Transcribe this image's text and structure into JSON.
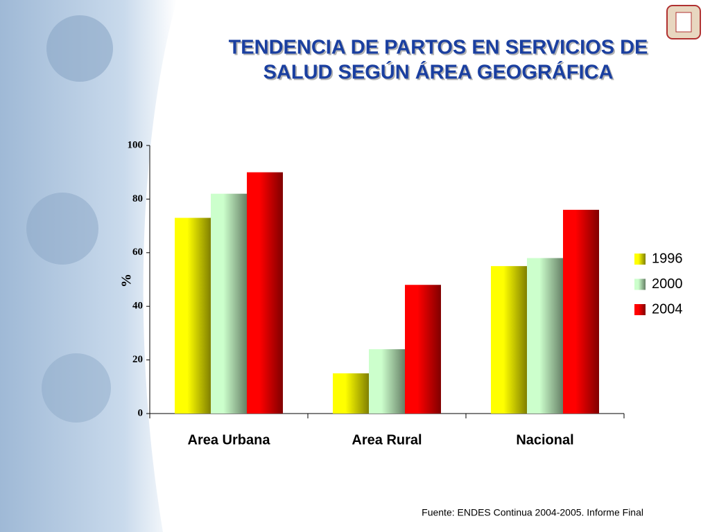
{
  "chart_data": {
    "type": "bar",
    "title": "TENDENCIA DE PARTOS EN SERVICIOS DE",
    "subtitle": "SALUD SEGÚN ÁREA GEOGRÁFICA",
    "y_label": "%",
    "source": "Fuente: ENDES Continua 2004-2005. Informe Final",
    "categories": [
      "Area Urbana",
      "Area Rural",
      "Nacional"
    ],
    "series": [
      {
        "name": "1996",
        "color": "#ffff00",
        "values": [
          73,
          15,
          55
        ]
      },
      {
        "name": "2000",
        "color": "#ccffcc",
        "values": [
          82,
          24,
          58
        ]
      },
      {
        "name": "2004",
        "color": "#ff0000",
        "values": [
          90,
          48,
          76
        ]
      }
    ],
    "ylim": [
      0,
      100
    ],
    "yticks": [
      0,
      20,
      40,
      60,
      80,
      100
    ],
    "legend": "right"
  }
}
